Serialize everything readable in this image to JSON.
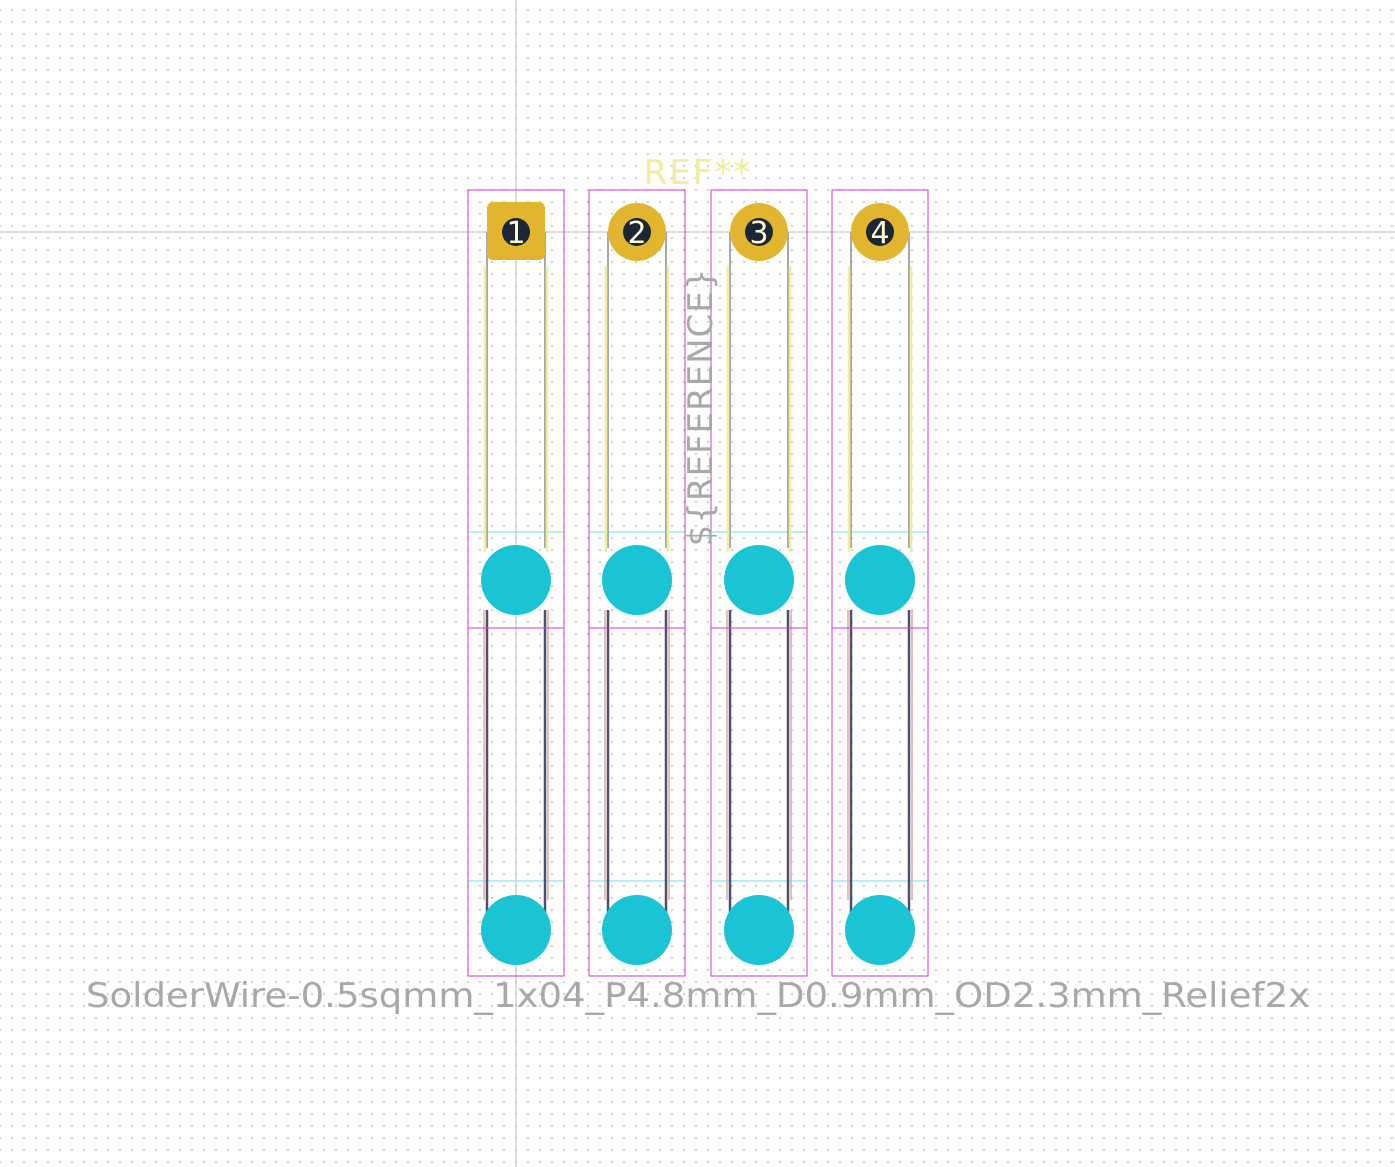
{
  "footprint": {
    "reference": "REF**",
    "reference_field": "${REFERENCE}",
    "value": "SolderWire-0.5sqmm_1x04_P4.8mm_D0.9mm_OD2.3mm_Relief2x"
  },
  "pads": [
    {
      "number": "1",
      "shape": "rect"
    },
    {
      "number": "2",
      "shape": "circle"
    },
    {
      "number": "3",
      "shape": "circle"
    },
    {
      "number": "4",
      "shape": "circle"
    }
  ],
  "colors": {
    "copper_pad": "#e2b52e",
    "pad_hole": "#1c2635",
    "pad_number": "#fffbd0",
    "silkscreen": "#f2ec9e",
    "fab": "#a8a8a8",
    "courtyard": "#d237d2",
    "relief_outline": "#6fdfe8",
    "relief_hole": "#1bc4d4",
    "wire_dark": "#4e4e6e",
    "wire_light": "#e0a8a0",
    "crosshair": "#bdbdbd",
    "reference_text": "#f2ec9e",
    "value_text": "#a8a8a8"
  },
  "icons": {
    "origin": "crosshair-icon"
  }
}
